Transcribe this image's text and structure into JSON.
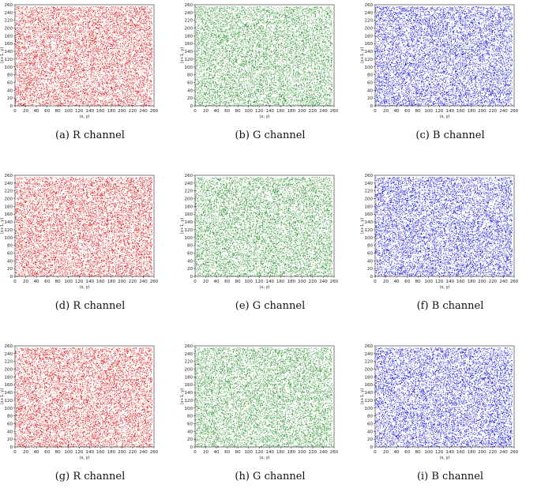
{
  "chart_data": [
    {
      "panel": "a",
      "caption": "(a) R channel",
      "type": "scatter",
      "color": "#e00000",
      "xlabel": "(x, y)",
      "ylabel": "(x+1, y)",
      "xlim": [
        0,
        260
      ],
      "ylim": [
        0,
        260
      ],
      "xticks": [
        0,
        20,
        40,
        60,
        80,
        100,
        120,
        140,
        160,
        180,
        200,
        220,
        240,
        260
      ],
      "yticks": [
        0,
        20,
        40,
        60,
        80,
        100,
        120,
        140,
        160,
        180,
        200,
        220,
        240,
        260
      ],
      "n_points": 9000,
      "seed": 11
    },
    {
      "panel": "b",
      "caption": "(b) G channel",
      "type": "scatter",
      "color": "#1a8a1a",
      "xlabel": "(x, y)",
      "ylabel": "(x+1, y)",
      "xlim": [
        0,
        260
      ],
      "ylim": [
        0,
        260
      ],
      "xticks": [
        0,
        20,
        40,
        60,
        80,
        100,
        120,
        140,
        160,
        180,
        200,
        220,
        240,
        260
      ],
      "yticks": [
        0,
        20,
        40,
        60,
        80,
        100,
        120,
        140,
        160,
        180,
        200,
        220,
        240,
        260
      ],
      "n_points": 9000,
      "seed": 23
    },
    {
      "panel": "c",
      "caption": "(c) B channel",
      "type": "scatter",
      "color": "#0000e0",
      "xlabel": "(x, y)",
      "ylabel": "(x+1, y)",
      "xlim": [
        0,
        260
      ],
      "ylim": [
        0,
        260
      ],
      "xticks": [
        0,
        20,
        40,
        60,
        80,
        100,
        120,
        140,
        160,
        180,
        200,
        220,
        240,
        260
      ],
      "yticks": [
        0,
        20,
        40,
        60,
        80,
        100,
        120,
        140,
        160,
        180,
        200,
        220,
        240,
        260
      ],
      "n_points": 9000,
      "seed": 37
    },
    {
      "panel": "d",
      "caption": "(d) R channel",
      "type": "scatter",
      "color": "#e00000",
      "xlabel": "(x, y)",
      "ylabel": "(x+1, y)",
      "xlim": [
        0,
        260
      ],
      "ylim": [
        0,
        260
      ],
      "xticks": [
        0,
        20,
        40,
        60,
        80,
        100,
        120,
        140,
        160,
        180,
        200,
        220,
        240,
        260
      ],
      "yticks": [
        0,
        20,
        40,
        60,
        80,
        100,
        120,
        140,
        160,
        180,
        200,
        220,
        240,
        260
      ],
      "n_points": 9000,
      "seed": 41
    },
    {
      "panel": "e",
      "caption": "(e) G channel",
      "type": "scatter",
      "color": "#1a8a1a",
      "xlabel": "(x, y)",
      "ylabel": "(x+1, y)",
      "xlim": [
        0,
        260
      ],
      "ylim": [
        0,
        260
      ],
      "xticks": [
        0,
        20,
        40,
        60,
        80,
        100,
        120,
        140,
        160,
        180,
        200,
        220,
        240,
        260
      ],
      "yticks": [
        0,
        20,
        40,
        60,
        80,
        100,
        120,
        140,
        160,
        180,
        200,
        220,
        240,
        260
      ],
      "n_points": 9000,
      "seed": 53
    },
    {
      "panel": "f",
      "caption": "(f) B channel",
      "type": "scatter",
      "color": "#0000e0",
      "xlabel": "(x, y)",
      "ylabel": "(x+1, y)",
      "xlim": [
        0,
        260
      ],
      "ylim": [
        0,
        260
      ],
      "xticks": [
        0,
        20,
        40,
        60,
        80,
        100,
        120,
        140,
        160,
        180,
        200,
        220,
        240,
        260
      ],
      "yticks": [
        0,
        20,
        40,
        60,
        80,
        100,
        120,
        140,
        160,
        180,
        200,
        220,
        240,
        260
      ],
      "n_points": 9000,
      "seed": 67
    },
    {
      "panel": "g",
      "caption": "(g) R channel",
      "type": "scatter",
      "color": "#e00000",
      "xlabel": "(x, y)",
      "ylabel": "(x+1, y)",
      "xlim": [
        0,
        260
      ],
      "ylim": [
        0,
        260
      ],
      "xticks": [
        0,
        20,
        40,
        60,
        80,
        100,
        120,
        140,
        160,
        180,
        200,
        220,
        240,
        260
      ],
      "yticks": [
        0,
        20,
        40,
        60,
        80,
        100,
        120,
        140,
        160,
        180,
        200,
        220,
        240,
        260
      ],
      "n_points": 9000,
      "seed": 71
    },
    {
      "panel": "h",
      "caption": "(h) G channel",
      "type": "scatter",
      "color": "#1a8a1a",
      "xlabel": "(x, y)",
      "ylabel": "(x+1, y)",
      "xlim": [
        0,
        260
      ],
      "ylim": [
        0,
        260
      ],
      "xticks": [
        0,
        20,
        40,
        60,
        80,
        100,
        120,
        140,
        160,
        180,
        200,
        220,
        240,
        260
      ],
      "yticks": [
        0,
        20,
        40,
        60,
        80,
        100,
        120,
        140,
        160,
        180,
        200,
        220,
        240,
        260
      ],
      "n_points": 9000,
      "seed": 83
    },
    {
      "panel": "i",
      "caption": "(i) B channel",
      "type": "scatter",
      "color": "#0000e0",
      "xlabel": "(x, y)",
      "ylabel": "(x+1, y)",
      "xlim": [
        0,
        260
      ],
      "ylim": [
        0,
        260
      ],
      "xticks": [
        0,
        20,
        40,
        60,
        80,
        100,
        120,
        140,
        160,
        180,
        200,
        220,
        240,
        260
      ],
      "yticks": [
        0,
        20,
        40,
        60,
        80,
        100,
        120,
        140,
        160,
        180,
        200,
        220,
        240,
        260
      ],
      "n_points": 9000,
      "seed": 97
    }
  ]
}
